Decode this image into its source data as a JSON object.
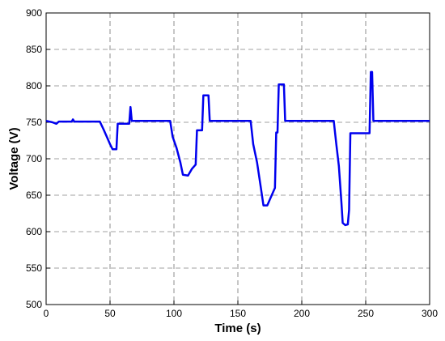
{
  "chart_data": {
    "type": "line",
    "x_label": "Time (s)",
    "y_label": "Voltage (V)",
    "xlim": [
      0,
      300
    ],
    "xticks": [
      0,
      50,
      100,
      150,
      200,
      250,
      300
    ],
    "ylim": [
      500,
      900
    ],
    "yticks": [
      500,
      550,
      600,
      650,
      700,
      750,
      800,
      850,
      900
    ],
    "grid": true,
    "series": [
      {
        "color": "#0000ee",
        "x": [
          0,
          5,
          8,
          10,
          20,
          21,
          22,
          42,
          45,
          48,
          50,
          52,
          55,
          56,
          65,
          66,
          67,
          97,
          99,
          102,
          105,
          107,
          111,
          114,
          117,
          118,
          122,
          123,
          127,
          128,
          160,
          162,
          165,
          168,
          170,
          173,
          176,
          179,
          180,
          181,
          182,
          186,
          187,
          225,
          227,
          229,
          231,
          232,
          234,
          236,
          237,
          238,
          253,
          254,
          255,
          256,
          300
        ],
        "values": [
          752,
          750,
          748,
          751,
          751,
          754,
          751,
          751,
          740,
          728,
          720,
          713,
          713,
          748,
          748,
          771,
          752,
          752,
          730,
          715,
          695,
          678,
          677,
          686,
          692,
          739,
          739,
          787,
          787,
          752,
          752,
          720,
          695,
          660,
          636,
          636,
          648,
          660,
          736,
          736,
          802,
          802,
          752,
          752,
          720,
          690,
          640,
          612,
          609,
          610,
          630,
          735,
          735,
          819,
          819,
          752,
          752
        ]
      }
    ]
  }
}
